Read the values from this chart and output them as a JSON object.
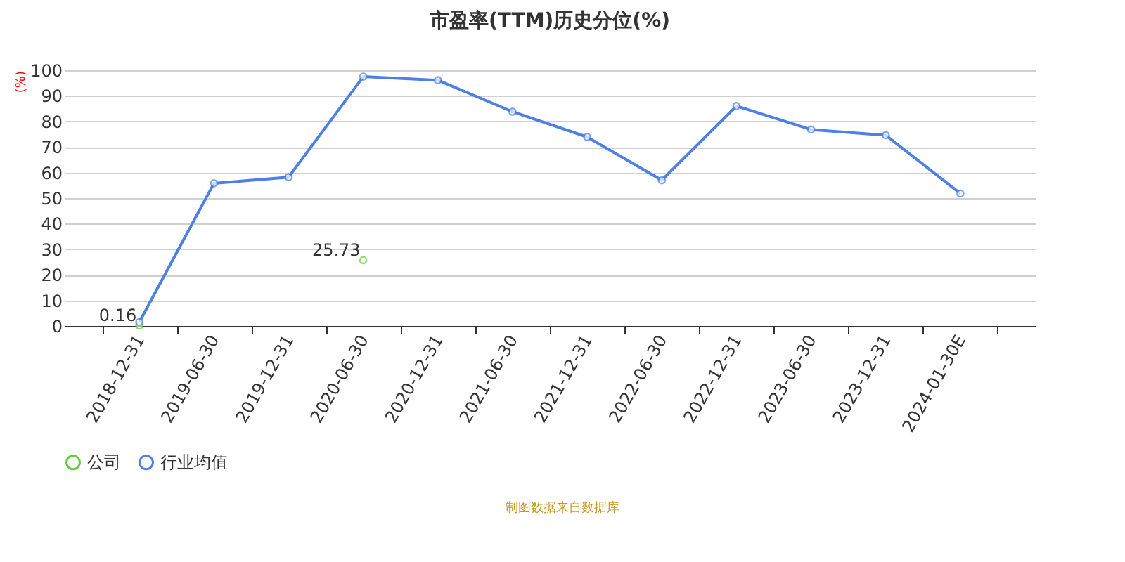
{
  "chart_data": {
    "type": "line",
    "title": "市盈率(TTM)历史分位(%)",
    "ylabel": "(%)",
    "categories": [
      "2018-12-31",
      "2019-06-30",
      "2019-12-31",
      "2020-06-30",
      "2020-12-31",
      "2021-06-30",
      "2021-12-31",
      "2022-06-30",
      "2022-12-31",
      "2023-06-30",
      "2023-12-31",
      "2024-01-30E"
    ],
    "series": [
      {
        "name": "公司",
        "type": "scatter",
        "color": "#66cc33",
        "values": [
          0.16,
          null,
          null,
          25.73,
          null,
          null,
          null,
          null,
          null,
          null,
          null,
          null
        ],
        "value_labels": [
          "0.16",
          null,
          null,
          "25.73",
          null,
          null,
          null,
          null,
          null,
          null,
          null,
          null
        ]
      },
      {
        "name": "行业均值",
        "color": "#4d7fe6",
        "values": [
          1.5,
          55.8,
          58.2,
          97.5,
          96.1,
          83.8,
          73.9,
          57.0,
          86.0,
          76.8,
          74.6,
          51.8
        ]
      }
    ],
    "ylim": [
      0,
      100
    ],
    "yticks": [
      0,
      10,
      20,
      30,
      40,
      50,
      60,
      70,
      80,
      90,
      100
    ],
    "grid": "y",
    "legend": "bottom",
    "marker": "circle",
    "annotations": [
      "制图数据来自数据库"
    ]
  }
}
